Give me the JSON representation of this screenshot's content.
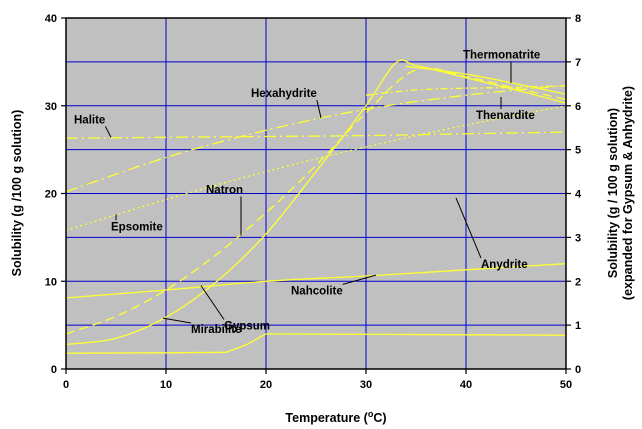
{
  "chart_data": {
    "type": "line",
    "title": "",
    "xlabel": "Temperature (°C)",
    "xlabel_parts": [
      "Temperature (",
      "o",
      "C)"
    ],
    "ylabel": "Solubility (g /100 g solution)",
    "y2label_line1": "Solubility (g / 100 g solution)",
    "y2label_line2": "(expanded for Gypsum & Anhydrite)",
    "xlim": [
      0,
      50
    ],
    "ylim": [
      0,
      40
    ],
    "y2lim": [
      0,
      8
    ],
    "x_ticks": [
      0,
      10,
      20,
      30,
      40,
      50
    ],
    "y_ticks": [
      0,
      10,
      20,
      30,
      40
    ],
    "y2_ticks": [
      0,
      1,
      2,
      3,
      4,
      5,
      6,
      7,
      8
    ],
    "grid": true,
    "legend": "none",
    "colors": {
      "plot_background": "#c0c0c0",
      "grid": "#0000cc",
      "curves": "#ffff33",
      "axes": "#000000"
    },
    "series": [
      {
        "name": "Halite",
        "axis": "left",
        "dash": "longdashdot",
        "x": [
          0,
          10,
          20,
          30,
          40,
          50
        ],
        "y": [
          26.3,
          26.4,
          26.5,
          26.6,
          26.8,
          27.0
        ]
      },
      {
        "name": "Hexahydrite",
        "axis": "left",
        "dash": "longdashdot",
        "x": [
          0,
          10,
          20,
          30,
          40,
          50
        ],
        "y": [
          20.2,
          24.1,
          27.2,
          29.6,
          31.2,
          32.3
        ]
      },
      {
        "name": "Epsomite",
        "axis": "left",
        "dash": "dot",
        "x": [
          0,
          10,
          20,
          30,
          40,
          50
        ],
        "y": [
          15.8,
          19.3,
          22.5,
          25.3,
          27.8,
          30.0
        ]
      },
      {
        "name": "Natron",
        "axis": "left",
        "dash": "dash",
        "x": [
          0,
          5,
          10,
          15,
          20,
          25,
          30,
          35,
          40,
          45,
          50
        ],
        "y": [
          4.0,
          6.0,
          9.0,
          13.0,
          17.8,
          23.2,
          29.2,
          34.1,
          33.3,
          32.0,
          30.7
        ]
      },
      {
        "name": "Mirabilite",
        "axis": "left",
        "dash": "solid",
        "x": [
          0,
          5,
          10,
          15,
          20,
          25,
          30,
          33,
          35,
          40,
          45,
          50
        ],
        "y": [
          2.8,
          3.5,
          5.9,
          9.9,
          15.4,
          22.5,
          30.0,
          34.9,
          34.6,
          33.2,
          31.8,
          30.3
        ]
      },
      {
        "name": "Thermonatrite",
        "axis": "left",
        "dash": "solid",
        "x": [
          34,
          40,
          45,
          50
        ],
        "y": [
          34.5,
          33.6,
          32.5,
          31.3
        ]
      },
      {
        "name": "Thenardite",
        "axis": "left",
        "dash": "dashdot",
        "x": [
          30,
          35,
          40,
          45,
          50
        ],
        "y": [
          31.2,
          31.8,
          32.0,
          32.1,
          32.3
        ]
      },
      {
        "name": "Nahcolite",
        "axis": "left",
        "dash": "solid",
        "x": [
          0,
          10,
          20,
          30,
          40,
          50
        ],
        "y": [
          8.1,
          9.0,
          10.0,
          10.6,
          11.3,
          12.0
        ]
      },
      {
        "name": "Gypsum",
        "axis": "right",
        "dash": "solid",
        "x": [
          0,
          10,
          16,
          18,
          20
        ],
        "y": [
          0.36,
          0.37,
          0.38,
          0.55,
          0.8
        ]
      },
      {
        "name": "Anydrite",
        "axis": "right",
        "dash": "solid",
        "x": [
          20,
          30,
          40,
          50
        ],
        "y": [
          0.8,
          0.79,
          0.78,
          0.77
        ]
      }
    ],
    "annotations": [
      {
        "text": "Halite",
        "series": "Halite",
        "at": [
          4.5,
          26.4
        ],
        "text_at": [
          0.8,
          28.0
        ],
        "anchor": "start"
      },
      {
        "text": "Hexahydrite",
        "series": "Hexahydrite",
        "at": [
          25.5,
          28.6
        ],
        "text_at": [
          18.5,
          31.0
        ],
        "anchor": "start"
      },
      {
        "text": "Epsomite",
        "series": "Epsomite",
        "at": [
          5.0,
          17.6
        ],
        "text_at": [
          4.5,
          15.8
        ],
        "anchor": "start"
      },
      {
        "text": "Natron",
        "series": "Natron",
        "at": [
          17.5,
          15.2
        ],
        "text_at": [
          14.0,
          20.0
        ],
        "anchor": "start"
      },
      {
        "text": "Mirabilite",
        "series": "Mirabilite",
        "at": [
          9.7,
          5.8
        ],
        "text_at": [
          12.5,
          4.1
        ],
        "anchor": "start"
      },
      {
        "text": "Thermonatrite",
        "series": "Thermonatrite",
        "at": [
          44.5,
          32.6
        ],
        "text_at": [
          39.7,
          35.4
        ],
        "anchor": "start"
      },
      {
        "text": "Thenardite",
        "series": "Thenardite",
        "at": [
          43.5,
          31.0
        ],
        "text_at": [
          41.0,
          28.5
        ],
        "anchor": "start"
      },
      {
        "text": "Nahcolite",
        "series": "Nahcolite",
        "at": [
          31.0,
          10.7
        ],
        "text_at": [
          22.5,
          8.5
        ],
        "anchor": "start"
      },
      {
        "text": "Gypsum",
        "series": "Gypsum",
        "at": [
          13.5,
          1.9
        ],
        "text_at": [
          15.8,
          0.9
        ],
        "anchor": "start"
      },
      {
        "text": "Anydrite",
        "series": "Anydrite",
        "at": [
          39.0,
          3.9
        ],
        "text_at": [
          41.5,
          2.3
        ],
        "anchor": "start"
      }
    ]
  }
}
